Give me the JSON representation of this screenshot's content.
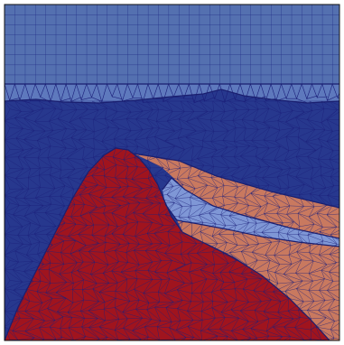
{
  "view": {
    "kind": "finite-element-mesh-render",
    "regions": [
      {
        "id": "upper-structured-layer",
        "mesh": "quad-structured",
        "color": "#5470b0"
      },
      {
        "id": "transition-triangle-band",
        "mesh": "triangular",
        "color": "#5e79bd"
      },
      {
        "id": "background-medium",
        "mesh": "triangular-unstructured",
        "color": "#27388e"
      },
      {
        "id": "dipping-layer-upper",
        "mesh": "triangular-unstructured",
        "color": "#c9795f"
      },
      {
        "id": "dipping-layer-middle",
        "mesh": "triangular-unstructured",
        "color": "#7f97d6"
      },
      {
        "id": "dipping-layer-lower",
        "mesh": "triangular-unstructured",
        "color": "#c9795f"
      },
      {
        "id": "dome-body",
        "mesh": "triangular-unstructured",
        "color": "#a0141e"
      }
    ],
    "edge_color": "#1b1f7a",
    "border_color": "#111111"
  }
}
